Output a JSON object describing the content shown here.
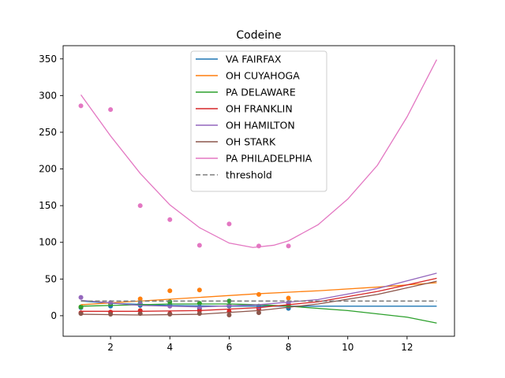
{
  "chart_data": {
    "type": "scatter",
    "title": "Codeine",
    "xlabel": "",
    "ylabel": "",
    "xlim": [
      0.4,
      13.6
    ],
    "ylim": [
      -28,
      368
    ],
    "xticks": [
      2,
      4,
      6,
      8,
      10,
      12
    ],
    "yticks": [
      0,
      50,
      100,
      150,
      200,
      250,
      300,
      350
    ],
    "grid": false,
    "legend_position": "upper center",
    "series": [
      {
        "name": "VA FAIRFAX",
        "color": "#1f77b4",
        "points": [
          [
            1,
            11
          ],
          [
            2,
            13
          ],
          [
            3,
            14
          ],
          [
            4,
            15
          ],
          [
            5,
            10
          ],
          [
            6,
            13
          ],
          [
            7,
            11
          ],
          [
            8,
            10
          ]
        ],
        "fit": [
          [
            1,
            20
          ],
          [
            2,
            17
          ],
          [
            4,
            14
          ],
          [
            6,
            13
          ],
          [
            8,
            13
          ],
          [
            10,
            13
          ],
          [
            13,
            13
          ]
        ]
      },
      {
        "name": "OH CUYAHOGA",
        "color": "#ff7f0e",
        "points": [
          [
            1,
            12
          ],
          [
            2,
            17
          ],
          [
            3,
            23
          ],
          [
            4,
            34
          ],
          [
            5,
            35
          ],
          [
            6,
            14
          ],
          [
            7,
            29
          ],
          [
            8,
            24
          ]
        ],
        "fit": [
          [
            1,
            15
          ],
          [
            3,
            20
          ],
          [
            5,
            25
          ],
          [
            7,
            30
          ],
          [
            9,
            34
          ],
          [
            11,
            39
          ],
          [
            13,
            45
          ]
        ]
      },
      {
        "name": "PA DELAWARE",
        "color": "#2ca02c",
        "points": [
          [
            1,
            12
          ],
          [
            2,
            16
          ],
          [
            3,
            17
          ],
          [
            4,
            19
          ],
          [
            5,
            17
          ],
          [
            6,
            20
          ],
          [
            7,
            13
          ],
          [
            8,
            14
          ]
        ],
        "fit": [
          [
            1,
            13
          ],
          [
            2,
            14
          ],
          [
            4,
            16
          ],
          [
            6,
            16
          ],
          [
            7,
            15
          ],
          [
            8,
            13
          ],
          [
            10,
            7
          ],
          [
            12,
            -2
          ],
          [
            13,
            -10
          ]
        ]
      },
      {
        "name": "OH FRANKLIN",
        "color": "#d62728",
        "points": [
          [
            1,
            4
          ],
          [
            2,
            5
          ],
          [
            3,
            7
          ],
          [
            4,
            3
          ],
          [
            5,
            7
          ],
          [
            6,
            6
          ],
          [
            7,
            9
          ],
          [
            8,
            17
          ]
        ],
        "fit": [
          [
            1,
            6
          ],
          [
            3,
            6
          ],
          [
            5,
            7
          ],
          [
            7,
            11
          ],
          [
            9,
            19
          ],
          [
            11,
            33
          ],
          [
            13,
            51
          ]
        ]
      },
      {
        "name": "OH HAMILTON",
        "color": "#9467bd",
        "points": [
          [
            1,
            25
          ],
          [
            2,
            18
          ],
          [
            3,
            16
          ],
          [
            4,
            13
          ],
          [
            5,
            12
          ],
          [
            6,
            14
          ],
          [
            7,
            12
          ],
          [
            8,
            18
          ]
        ],
        "fit": [
          [
            1,
            21
          ],
          [
            3,
            14
          ],
          [
            5,
            12
          ],
          [
            7,
            15
          ],
          [
            9,
            22
          ],
          [
            11,
            37
          ],
          [
            13,
            58
          ]
        ]
      },
      {
        "name": "OH STARK",
        "color": "#8c564b",
        "points": [
          [
            1,
            3
          ],
          [
            2,
            2
          ],
          [
            3,
            3
          ],
          [
            4,
            2
          ],
          [
            5,
            3
          ],
          [
            6,
            1
          ],
          [
            7,
            4
          ],
          [
            8,
            13
          ]
        ],
        "fit": [
          [
            1,
            2
          ],
          [
            3,
            1
          ],
          [
            5,
            2
          ],
          [
            7,
            7
          ],
          [
            9,
            16
          ],
          [
            11,
            29
          ],
          [
            13,
            47
          ]
        ]
      },
      {
        "name": "PA PHILADELPHIA",
        "color": "#e377c2",
        "points": [
          [
            1,
            286
          ],
          [
            2,
            281
          ],
          [
            3,
            150
          ],
          [
            4,
            131
          ],
          [
            5,
            96
          ],
          [
            6,
            125
          ],
          [
            7,
            95
          ],
          [
            8,
            95
          ]
        ],
        "fit": [
          [
            1,
            301
          ],
          [
            2,
            245
          ],
          [
            3,
            194
          ],
          [
            4,
            151
          ],
          [
            5,
            120
          ],
          [
            6,
            99
          ],
          [
            6.8,
            93
          ],
          [
            7.5,
            96
          ],
          [
            8,
            102
          ],
          [
            9,
            124
          ],
          [
            10,
            159
          ],
          [
            11,
            205
          ],
          [
            12,
            271
          ],
          [
            13,
            349
          ]
        ]
      }
    ],
    "threshold": {
      "name": "threshold",
      "value": 20,
      "color": "#7f7f7f",
      "x_range": [
        1,
        13
      ]
    }
  }
}
